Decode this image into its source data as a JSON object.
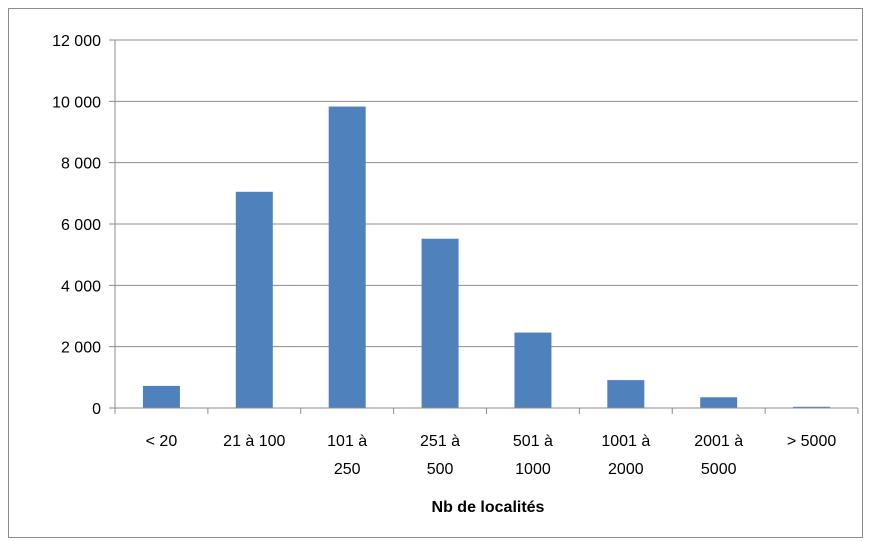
{
  "chart_data": {
    "type": "bar",
    "title": "",
    "xlabel": "Nb de localités",
    "ylabel": "",
    "categories": [
      [
        "< 20"
      ],
      [
        "21 à 100"
      ],
      [
        "101 à",
        "250"
      ],
      [
        "251 à",
        "500"
      ],
      [
        "501 à",
        "1000"
      ],
      [
        "1001 à",
        "2000"
      ],
      [
        "2001 à",
        "5000"
      ],
      [
        "> 5000"
      ]
    ],
    "values": [
      720,
      7050,
      9830,
      5520,
      2460,
      910,
      350,
      40
    ],
    "ylim": [
      0,
      12000
    ],
    "yticks": [
      0,
      2000,
      4000,
      6000,
      8000,
      10000,
      12000
    ],
    "ytick_labels": [
      "0",
      "2 000",
      "4 000",
      "6 000",
      "8 000",
      "10 000",
      "12 000"
    ],
    "grid": true,
    "legend": "none",
    "colors": {
      "bar": "#4f81bd",
      "grid": "#8c8c8c",
      "axis": "#8c8c8c"
    }
  }
}
